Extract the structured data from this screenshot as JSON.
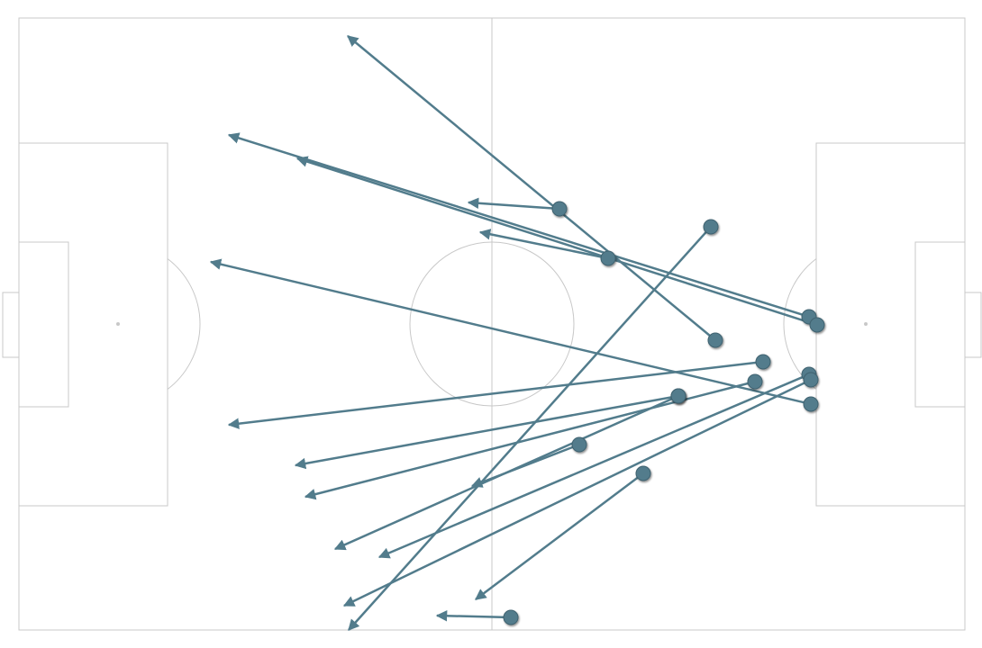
{
  "chart_data": {
    "type": "pass-map",
    "color": "#527c8c",
    "xlim": [
      0,
      105
    ],
    "ylim": [
      0,
      68
    ],
    "x": [
      60.0,
      77.3,
      87.7,
      88.6,
      65.4,
      76.8,
      87.9,
      82.6,
      73.2,
      81.7,
      73.2,
      62.2,
      87.7,
      87.9,
      69.3,
      54.6
    ],
    "y": [
      21.2,
      35.8,
      33.2,
      34.1,
      26.7,
      23.2,
      42.9,
      38.2,
      42.0,
      40.4,
      42.0,
      47.4,
      39.6,
      40.2,
      50.6,
      66.6
    ],
    "end_x": [
      49.9,
      36.5,
      23.3,
      30.9,
      51.2,
      36.6,
      21.3,
      23.3,
      30.7,
      31.8,
      35.1,
      50.3,
      40.0,
      36.1,
      50.7,
      46.4
    ],
    "end_y": [
      20.5,
      2.0,
      13.0,
      15.6,
      23.8,
      68.0,
      27.1,
      45.2,
      49.7,
      53.2,
      59.0,
      52.0,
      59.9,
      65.3,
      64.6,
      66.4
    ]
  }
}
